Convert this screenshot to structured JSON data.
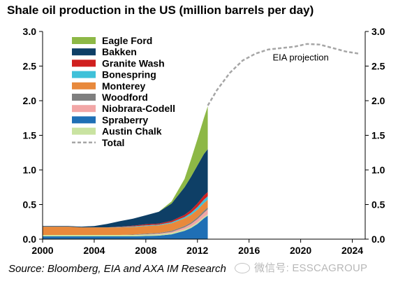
{
  "source_text": "Source: Bloomberg, EIA and AXA IM Research",
  "watermark": {
    "icon": "wechat-icon",
    "text": "微信号: ESSCAGROUP"
  },
  "chart_data": {
    "type": "area",
    "title": "Shale oil production in the US (million barrels per day)",
    "xlabel": "",
    "ylabel": "",
    "xlim": [
      2000,
      2025
    ],
    "ylim": [
      0,
      3.0
    ],
    "x_ticks": [
      "2000",
      "2004",
      "2008",
      "2012",
      "2016",
      "2020",
      "2024"
    ],
    "y_ticks": [
      "0.0",
      "0.5",
      "1.0",
      "1.5",
      "2.0",
      "2.5",
      "3.0"
    ],
    "y_axes": [
      "left",
      "right"
    ],
    "grid": false,
    "legend_position": "top-left",
    "stacked": true,
    "x": [
      2000,
      2001,
      2002,
      2003,
      2004,
      2005,
      2006,
      2007,
      2008,
      2009,
      2010,
      2011,
      2011.5,
      2012,
      2012.5,
      2012.8
    ],
    "series": [
      {
        "name": "Spraberry",
        "color": "#1F6FB5",
        "values": [
          0.04,
          0.04,
          0.04,
          0.04,
          0.04,
          0.04,
          0.04,
          0.04,
          0.045,
          0.05,
          0.07,
          0.12,
          0.16,
          0.22,
          0.3,
          0.34
        ]
      },
      {
        "name": "Austin Chalk",
        "color": "#C9E3A1",
        "values": [
          0.02,
          0.02,
          0.02,
          0.02,
          0.02,
          0.02,
          0.02,
          0.02,
          0.02,
          0.02,
          0.02,
          0.02,
          0.02,
          0.02,
          0.02,
          0.02
        ]
      },
      {
        "name": "Niobrara-Codell",
        "color": "#F2A6A6",
        "values": [
          0.0,
          0.0,
          0.0,
          0.0,
          0.0,
          0.0,
          0.0,
          0.0,
          0.005,
          0.01,
          0.015,
          0.03,
          0.04,
          0.05,
          0.06,
          0.07
        ]
      },
      {
        "name": "Woodford",
        "color": "#7F7F7F",
        "values": [
          0.0,
          0.0,
          0.0,
          0.0,
          0.0,
          0.0,
          0.0,
          0.005,
          0.01,
          0.01,
          0.015,
          0.02,
          0.02,
          0.025,
          0.03,
          0.03
        ]
      },
      {
        "name": "Monterey",
        "color": "#E8893C",
        "values": [
          0.12,
          0.12,
          0.12,
          0.11,
          0.11,
          0.11,
          0.11,
          0.11,
          0.11,
          0.11,
          0.11,
          0.11,
          0.11,
          0.11,
          0.11,
          0.11
        ]
      },
      {
        "name": "Bonespring",
        "color": "#3FC1D9",
        "values": [
          0.0,
          0.0,
          0.0,
          0.0,
          0.0,
          0.0,
          0.005,
          0.01,
          0.01,
          0.01,
          0.015,
          0.02,
          0.03,
          0.04,
          0.05,
          0.05
        ]
      },
      {
        "name": "Granite Wash",
        "color": "#D0201F",
        "values": [
          0.0,
          0.0,
          0.0,
          0.0,
          0.0,
          0.0,
          0.005,
          0.01,
          0.015,
          0.015,
          0.02,
          0.03,
          0.04,
          0.05,
          0.06,
          0.06
        ]
      },
      {
        "name": "Bakken",
        "color": "#0E3F66",
        "values": [
          0.01,
          0.01,
          0.01,
          0.01,
          0.02,
          0.05,
          0.08,
          0.1,
          0.13,
          0.17,
          0.25,
          0.4,
          0.48,
          0.55,
          0.6,
          0.62
        ]
      },
      {
        "name": "Eagle Ford",
        "color": "#8DB846",
        "values": [
          0.0,
          0.0,
          0.0,
          0.0,
          0.0,
          0.0,
          0.0,
          0.0,
          0.0,
          0.0,
          0.03,
          0.12,
          0.25,
          0.38,
          0.52,
          0.62
        ]
      }
    ],
    "total_projection": {
      "name": "Total",
      "color": "#A6A6A6",
      "x": [
        2012.8,
        2013.5,
        2014.5,
        2015.5,
        2016.5,
        2017.5,
        2018.5,
        2019.5,
        2020.5,
        2021.5,
        2022.5,
        2023.5,
        2024.5
      ],
      "values": [
        1.93,
        2.15,
        2.4,
        2.58,
        2.68,
        2.74,
        2.76,
        2.78,
        2.82,
        2.81,
        2.76,
        2.71,
        2.68
      ]
    },
    "annotations": [
      {
        "text": "EIA projection",
        "x": 2020.0,
        "y": 2.58
      }
    ],
    "legend_order": [
      "Eagle Ford",
      "Bakken",
      "Granite Wash",
      "Bonespring",
      "Monterey",
      "Woodford",
      "Niobrara-Codell",
      "Spraberry",
      "Austin Chalk",
      "Total"
    ]
  }
}
